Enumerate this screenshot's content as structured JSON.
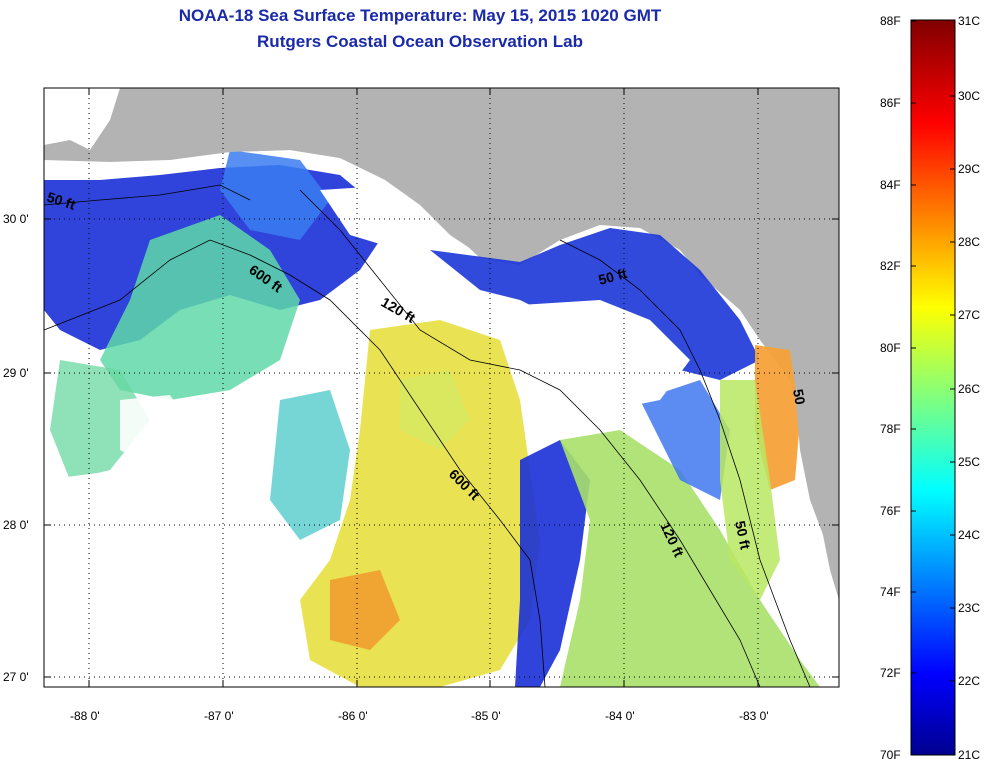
{
  "header": {
    "title": "NOAA-18 Sea Surface Temperature:  May 15, 2015 1020 GMT",
    "subtitle": "Rutgers Coastal Ocean Observation Lab"
  },
  "map": {
    "longitude_ticks": [
      "-88 0'",
      "-87 0'",
      "-86 0'",
      "-85 0'",
      "-84 0'",
      "-83 0'"
    ],
    "latitude_ticks": [
      "30 0'",
      "29 0'",
      "28 0'",
      "27 0'"
    ],
    "lon_range": [
      -88.35,
      -82.4
    ],
    "lat_range": [
      26.97,
      30.85
    ],
    "contour_labels": [
      {
        "text": "50 ft"
      },
      {
        "text": "600 ft"
      },
      {
        "text": "120 ft"
      },
      {
        "text": "50 ft"
      },
      {
        "text": "600 ft"
      },
      {
        "text": "120 ft"
      },
      {
        "text": "50 ft"
      },
      {
        "text": "50"
      }
    ],
    "land_color": "#b3b3b3",
    "no_data_color": "#ffffff"
  },
  "colorbar": {
    "fahrenheit_labels": [
      "88F",
      "86F",
      "84F",
      "82F",
      "80F",
      "78F",
      "76F",
      "74F",
      "72F",
      "70F"
    ],
    "celsius_labels": [
      "31C",
      "30C",
      "29C",
      "28C",
      "27C",
      "26C",
      "25C",
      "24C",
      "23C",
      "22C",
      "21C"
    ],
    "range_celsius": [
      21,
      31
    ]
  }
}
